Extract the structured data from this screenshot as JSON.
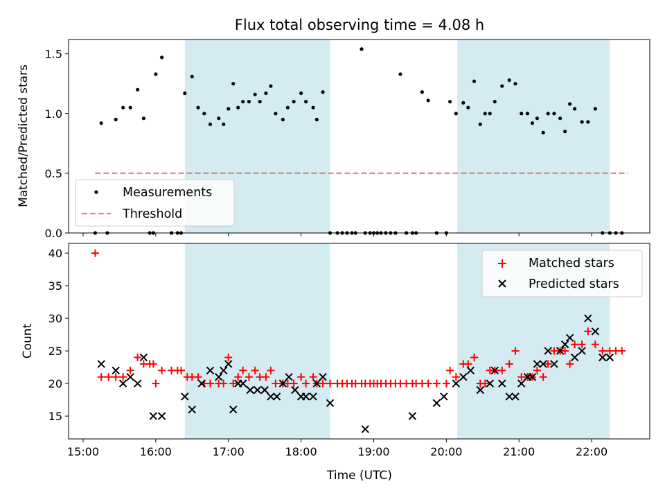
{
  "chart_data": [
    {
      "type": "scatter",
      "title": "Flux total observing time = 4.08 h",
      "xlabel": "",
      "ylabel": "Matched/Predicted stars",
      "xlim": [
        "14:48",
        "22:48"
      ],
      "ylim": [
        0,
        1.62
      ],
      "yticks": [
        "0.0",
        "0.5",
        "1.0",
        "1.5"
      ],
      "xticks": [
        "15:00",
        "16:00",
        "17:00",
        "18:00",
        "19:00",
        "20:00",
        "21:00",
        "22:00"
      ],
      "shaded_intervals": [
        [
          "16:24",
          "18:24"
        ],
        [
          "20:09",
          "22:15"
        ]
      ],
      "threshold": {
        "name": "Threshold",
        "value": 0.5,
        "x_start": "15:10",
        "x_end": "22:30"
      },
      "series": [
        {
          "name": "Measurements",
          "x": [
            "15:10",
            "15:15",
            "15:20",
            "15:27",
            "15:33",
            "15:39",
            "15:45",
            "15:50",
            "15:55",
            "15:58",
            "16:00",
            "16:05",
            "16:13",
            "16:18",
            "16:21",
            "16:24",
            "16:30",
            "16:35",
            "16:40",
            "16:45",
            "16:52",
            "16:56",
            "17:00",
            "17:04",
            "17:08",
            "17:12",
            "17:17",
            "17:22",
            "17:26",
            "17:31",
            "17:35",
            "17:39",
            "17:45",
            "17:49",
            "17:54",
            "18:00",
            "18:04",
            "18:10",
            "18:13",
            "18:18",
            "18:24",
            "18:30",
            "18:34",
            "18:38",
            "18:42",
            "18:45",
            "18:50",
            "18:53",
            "18:57",
            "19:00",
            "19:03",
            "19:06",
            "19:10",
            "19:14",
            "19:18",
            "19:22",
            "19:27",
            "19:32",
            "19:35",
            "19:40",
            "19:45",
            "19:52",
            "20:00",
            "20:03",
            "20:08",
            "20:14",
            "20:18",
            "20:23",
            "20:28",
            "20:32",
            "20:36",
            "20:40",
            "20:46",
            "20:52",
            "20:57",
            "21:02",
            "21:07",
            "21:11",
            "21:15",
            "21:20",
            "21:24",
            "21:29",
            "21:34",
            "21:38",
            "21:42",
            "21:46",
            "21:52",
            "21:57",
            "22:03",
            "22:09",
            "22:15",
            "22:20",
            "22:25"
          ],
          "y": [
            0,
            0.92,
            0,
            0.95,
            1.05,
            1.05,
            1.2,
            0.96,
            0,
            0,
            1.33,
            1.47,
            0,
            0,
            0,
            1.17,
            1.31,
            1.05,
            1.0,
            0.91,
            0.96,
            0.91,
            1.04,
            1.25,
            1.05,
            1.1,
            1.1,
            1.16,
            1.1,
            1.17,
            1.23,
            1.0,
            0.95,
            1.05,
            1.1,
            1.17,
            1.1,
            1.05,
            0.95,
            1.18,
            0,
            0,
            0,
            0,
            0,
            0,
            1.54,
            0,
            0,
            0,
            0,
            0,
            0,
            0,
            0,
            1.33,
            0,
            0,
            0,
            1.18,
            1.11,
            0,
            0,
            1.1,
            1.0,
            1.09,
            1.05,
            1.27,
            0.91,
            1.0,
            1.0,
            1.1,
            1.23,
            1.28,
            1.25,
            1.0,
            1.0,
            0.92,
            0.96,
            0.84,
            1.0,
            1.0,
            0.96,
            0.85,
            1.08,
            1.04,
            0.93,
            0.93,
            1.04,
            0,
            0,
            0,
            0
          ]
        }
      ],
      "legend": {
        "placement": "lower-left",
        "entries": [
          "Measurements",
          "Threshold"
        ]
      }
    },
    {
      "type": "scatter",
      "title": "",
      "xlabel": "Time (UTC)",
      "ylabel": "Count",
      "xlim": [
        "14:48",
        "22:48"
      ],
      "ylim": [
        11.5,
        41.5
      ],
      "yticks": [
        "15",
        "20",
        "25",
        "30",
        "35",
        "40"
      ],
      "xticks": [
        "15:00",
        "16:00",
        "17:00",
        "18:00",
        "19:00",
        "20:00",
        "21:00",
        "22:00"
      ],
      "shaded_intervals": [
        [
          "16:24",
          "18:24"
        ],
        [
          "20:09",
          "22:15"
        ]
      ],
      "series": [
        {
          "name": "Matched stars",
          "x": [
            "15:10",
            "15:15",
            "15:21",
            "15:27",
            "15:33",
            "15:39",
            "15:45",
            "15:50",
            "15:55",
            "15:58",
            "16:00",
            "16:05",
            "16:13",
            "16:18",
            "16:21",
            "16:26",
            "16:30",
            "16:35",
            "16:40",
            "16:45",
            "16:52",
            "16:56",
            "17:00",
            "17:04",
            "17:08",
            "17:12",
            "17:17",
            "17:22",
            "17:26",
            "17:31",
            "17:35",
            "17:39",
            "17:45",
            "17:49",
            "17:54",
            "18:00",
            "18:04",
            "18:10",
            "18:13",
            "18:18",
            "18:24",
            "18:30",
            "18:34",
            "18:38",
            "18:42",
            "18:45",
            "18:50",
            "18:53",
            "18:57",
            "19:00",
            "19:03",
            "19:06",
            "19:10",
            "19:14",
            "19:18",
            "19:22",
            "19:27",
            "19:32",
            "19:35",
            "19:40",
            "19:45",
            "19:52",
            "20:00",
            "20:03",
            "20:08",
            "20:14",
            "20:18",
            "20:23",
            "20:28",
            "20:32",
            "20:36",
            "20:40",
            "20:46",
            "20:52",
            "20:57",
            "21:02",
            "21:07",
            "21:11",
            "21:15",
            "21:20",
            "21:24",
            "21:29",
            "21:34",
            "21:38",
            "21:42",
            "21:46",
            "21:52",
            "21:57",
            "22:03",
            "22:09",
            "22:15",
            "22:20",
            "22:25"
          ],
          "y": [
            40,
            21,
            21,
            21,
            21,
            22,
            24,
            23,
            23,
            23,
            20,
            22,
            22,
            22,
            22,
            21,
            21,
            21,
            20,
            20,
            20,
            20,
            24,
            20,
            21,
            22,
            21,
            22,
            21,
            21,
            22,
            20,
            20,
            20,
            20,
            21,
            20,
            21,
            20,
            20,
            20,
            20,
            20,
            20,
            20,
            20,
            20,
            20,
            20,
            20,
            20,
            20,
            20,
            20,
            20,
            20,
            20,
            20,
            20,
            20,
            20,
            20,
            20,
            22,
            21,
            23,
            23,
            24,
            20,
            20,
            22,
            22,
            22,
            23,
            25,
            21,
            21,
            21,
            22,
            21,
            23,
            25,
            25,
            25,
            23,
            26,
            26,
            28,
            26,
            25,
            25,
            25,
            25
          ]
        },
        {
          "name": "Predicted stars",
          "x": [
            "15:15",
            "15:27",
            "15:33",
            "15:39",
            "15:45",
            "15:50",
            "15:58",
            "16:05",
            "16:24",
            "16:30",
            "16:38",
            "16:45",
            "16:52",
            "16:56",
            "17:00",
            "17:04",
            "17:08",
            "17:12",
            "17:18",
            "17:24",
            "17:30",
            "17:35",
            "17:40",
            "17:45",
            "17:50",
            "17:55",
            "18:00",
            "18:04",
            "18:10",
            "18:13",
            "18:18",
            "18:24",
            "18:53",
            "19:32",
            "19:52",
            "19:58",
            "20:08",
            "20:14",
            "20:20",
            "20:28",
            "20:36",
            "20:40",
            "20:46",
            "20:52",
            "20:57",
            "21:02",
            "21:07",
            "21:11",
            "21:15",
            "21:20",
            "21:24",
            "21:29",
            "21:34",
            "21:38",
            "21:42",
            "21:46",
            "21:52",
            "21:57",
            "22:03",
            "22:09",
            "22:15"
          ],
          "y": [
            23,
            22,
            20,
            21,
            20,
            24,
            15,
            15,
            18,
            16,
            20,
            22,
            21,
            22,
            23,
            16,
            20,
            20,
            19,
            19,
            19,
            18,
            18,
            20,
            21,
            19,
            18,
            18,
            18,
            20,
            21,
            17,
            13,
            15,
            17,
            18,
            20,
            21,
            22,
            19,
            20,
            22,
            20,
            18,
            18,
            20,
            21,
            21,
            23,
            23,
            25,
            23,
            25,
            26,
            27,
            24,
            25,
            30,
            28,
            24,
            24
          ]
        }
      ],
      "legend": {
        "placement": "upper-right",
        "entries": [
          "Matched stars",
          "Predicted stars"
        ]
      }
    }
  ],
  "colors": {
    "shade": "#d4ebf1",
    "measurements": "#000000",
    "threshold": "#f08080",
    "matched": "#ff0000",
    "predicted": "#000000"
  }
}
